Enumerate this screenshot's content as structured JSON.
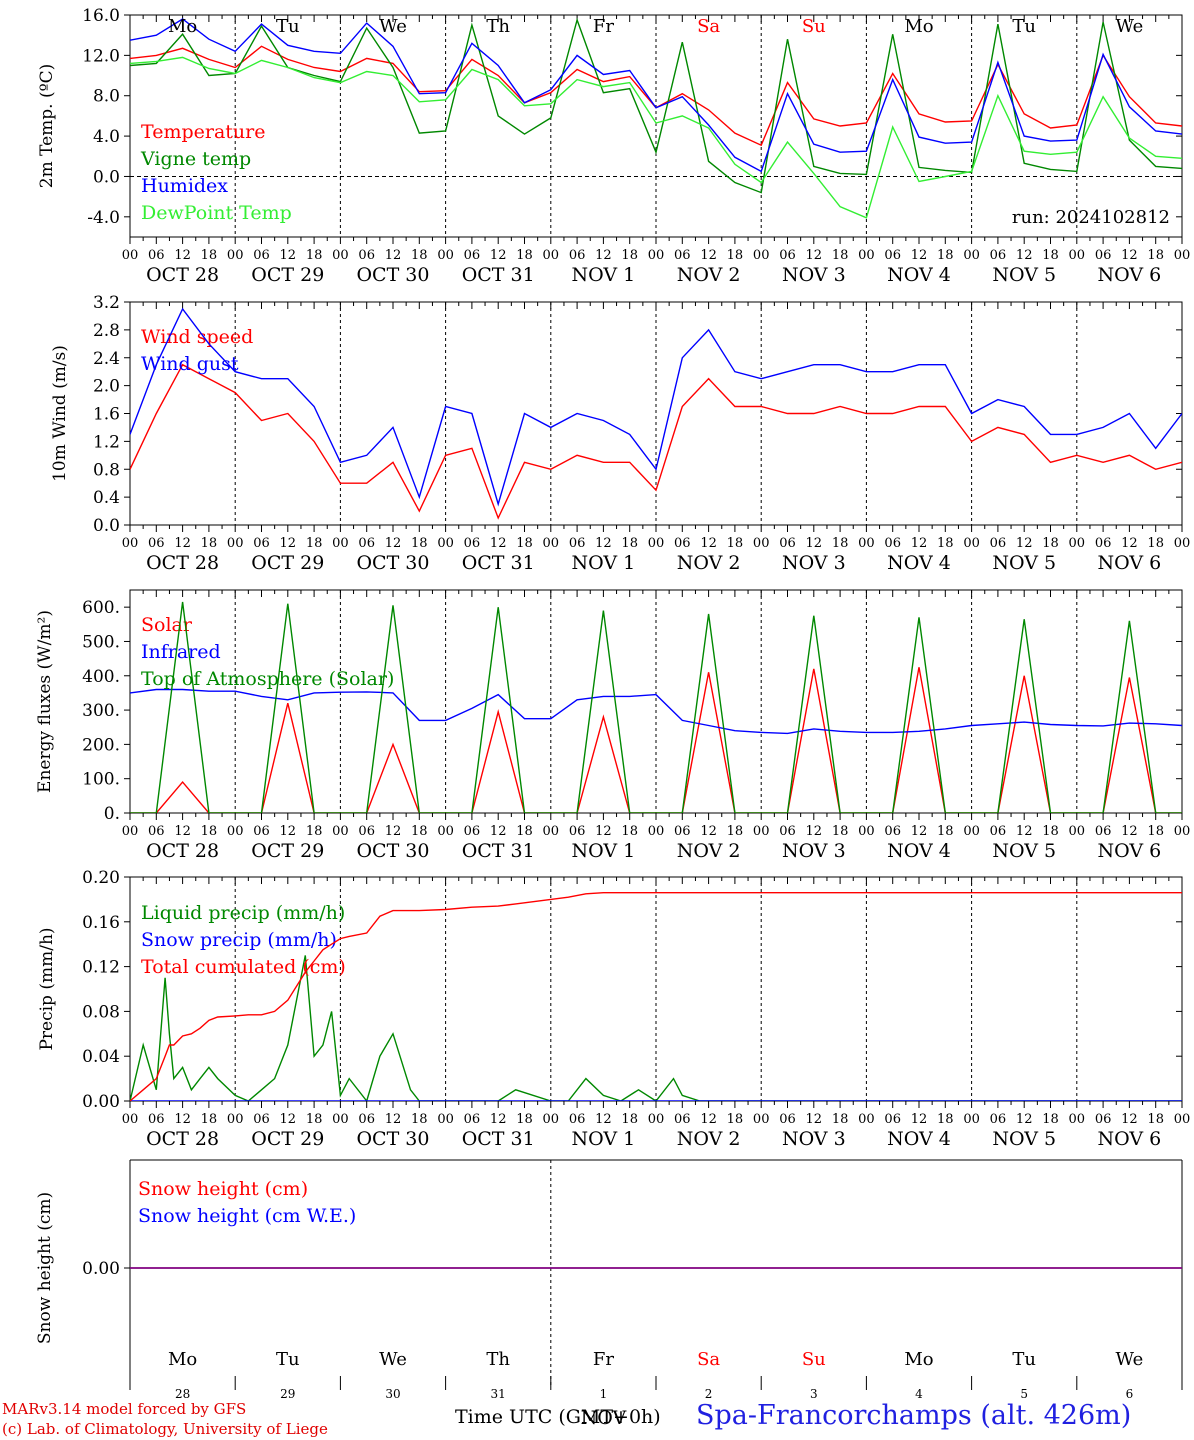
{
  "run_label": "run: 2024102812",
  "days": [
    {
      "dow": "Mo",
      "date": "OCT  28",
      "num": "28",
      "weekend": false
    },
    {
      "dow": "Tu",
      "date": "OCT  29",
      "num": "29",
      "weekend": false
    },
    {
      "dow": "We",
      "date": "OCT  30",
      "num": "30",
      "weekend": false
    },
    {
      "dow": "Th",
      "date": "OCT  31",
      "num": "31",
      "weekend": false
    },
    {
      "dow": "Fr",
      "date": "NOV   1",
      "num": "1",
      "weekend": false
    },
    {
      "dow": "Sa",
      "date": "NOV   2",
      "num": "2",
      "weekend": true
    },
    {
      "dow": "Su",
      "date": "NOV   3",
      "num": "3",
      "weekend": true
    },
    {
      "dow": "Mo",
      "date": "NOV   4",
      "num": "4",
      "weekend": false
    },
    {
      "dow": "Tu",
      "date": "NOV   5",
      "num": "5",
      "weekend": false
    },
    {
      "dow": "We",
      "date": "NOV   6",
      "num": "6",
      "weekend": false
    }
  ],
  "hour_ticks": [
    "00",
    "06",
    "12",
    "18"
  ],
  "end_tick": "00",
  "month_bottom": "NOV",
  "footer": {
    "credit_1": "MARv3.14 model forced by GFS",
    "credit_2": "(c) Lab. of Climatology, University of Liege",
    "axis_title": "Time UTC (GMT+0h)",
    "site": "Spa-Francorchamps (alt. 426m)"
  },
  "colors": {
    "red": "#ff0000",
    "green": "#008800",
    "blue": "#0000ff",
    "lightgreen": "#33ee33",
    "purple": "#800080",
    "footer_blue": "#2020e0",
    "footer_red": "#e00000"
  },
  "chart_data": [
    {
      "type": "line",
      "id": "temperature",
      "ylabel": "2m Temp. (ºC)",
      "ylim": [
        -6,
        16
      ],
      "ticks": [
        -4,
        0,
        4,
        8,
        12,
        16
      ],
      "tick_labels": [
        "-4.0",
        "0.0",
        "4.0",
        "8.0",
        "12.0",
        "16.0"
      ],
      "zero_line": true,
      "x_hours": [
        0,
        6,
        12,
        18,
        24,
        30,
        36,
        42,
        48,
        54,
        60,
        66,
        72,
        78,
        84,
        90,
        96,
        102,
        108,
        114,
        120,
        126,
        132,
        138,
        144,
        150,
        156,
        162,
        168,
        174,
        180,
        186,
        192,
        198,
        204,
        210,
        216,
        222,
        228,
        234,
        240
      ],
      "series": [
        {
          "name": "Temperature",
          "color": "red",
          "values": [
            11.7,
            12.0,
            12.7,
            11.6,
            10.8,
            12.9,
            11.6,
            10.8,
            10.4,
            11.7,
            11.2,
            8.4,
            8.5,
            11.6,
            10.0,
            7.3,
            8.3,
            10.6,
            9.4,
            9.9,
            6.8,
            8.2,
            6.6,
            4.3,
            3.1,
            9.3,
            5.7,
            5.0,
            5.3,
            10.2,
            6.2,
            5.4,
            5.5,
            11.1,
            6.2,
            4.8,
            5.1,
            12.0,
            7.9,
            5.3,
            5.0
          ]
        },
        {
          "name": "Vigne temp",
          "color": "green",
          "values": [
            11.0,
            11.2,
            14.1,
            10.0,
            10.2,
            14.9,
            10.8,
            10.0,
            9.4,
            14.7,
            10.8,
            4.3,
            4.5,
            15.0,
            6.0,
            4.2,
            5.8,
            15.5,
            8.3,
            8.7,
            2.4,
            13.3,
            1.5,
            -0.6,
            -1.6,
            13.6,
            1.0,
            0.3,
            0.2,
            14.1,
            0.9,
            0.6,
            0.4,
            15.1,
            1.3,
            0.7,
            0.5,
            15.3,
            3.6,
            1.0,
            0.8
          ]
        },
        {
          "name": "Humidex",
          "color": "blue",
          "values": [
            13.5,
            14.0,
            15.6,
            13.6,
            12.4,
            15.1,
            13.0,
            12.4,
            12.2,
            15.2,
            12.9,
            8.2,
            8.3,
            13.2,
            11.0,
            7.3,
            8.6,
            12.0,
            10.1,
            10.5,
            6.8,
            7.9,
            5.1,
            1.9,
            0.5,
            8.2,
            3.2,
            2.4,
            2.5,
            9.6,
            3.9,
            3.3,
            3.4,
            11.3,
            4.0,
            3.5,
            3.6,
            12.1,
            6.9,
            4.5,
            4.2
          ]
        },
        {
          "name": "DewPoint Temp",
          "color": "lightgreen",
          "values": [
            11.2,
            11.4,
            11.8,
            10.7,
            10.2,
            11.5,
            10.8,
            9.8,
            9.3,
            10.4,
            10.0,
            7.4,
            7.6,
            10.6,
            9.6,
            7.0,
            7.2,
            9.6,
            8.9,
            9.3,
            5.3,
            6.0,
            4.8,
            1.2,
            -0.6,
            3.4,
            0.3,
            -3.0,
            -4.1,
            4.9,
            -0.5,
            0.0,
            0.5,
            8.0,
            2.5,
            2.2,
            2.4,
            7.9,
            3.8,
            2.0,
            1.8
          ]
        }
      ]
    },
    {
      "type": "line",
      "id": "wind",
      "ylabel": "10m Wind (m/s)",
      "ylim": [
        0,
        3.2
      ],
      "ticks": [
        0,
        0.4,
        0.8,
        1.2,
        1.6,
        2.0,
        2.4,
        2.8,
        3.2
      ],
      "tick_labels": [
        "0.0",
        "0.4",
        "0.8",
        "1.2",
        "1.6",
        "2.0",
        "2.4",
        "2.8",
        "3.2"
      ],
      "x_hours": [
        0,
        6,
        12,
        18,
        24,
        30,
        36,
        42,
        48,
        54,
        60,
        66,
        72,
        78,
        84,
        90,
        96,
        102,
        108,
        114,
        120,
        126,
        132,
        138,
        144,
        150,
        156,
        162,
        168,
        174,
        180,
        186,
        192,
        198,
        204,
        210,
        216,
        222,
        228,
        234,
        240
      ],
      "series": [
        {
          "name": "Wind speed",
          "color": "red",
          "values": [
            0.8,
            1.6,
            2.3,
            2.1,
            1.9,
            1.5,
            1.6,
            1.2,
            0.6,
            0.6,
            0.9,
            0.2,
            1.0,
            1.1,
            0.1,
            0.9,
            0.8,
            1.0,
            0.9,
            0.9,
            0.5,
            1.7,
            2.1,
            1.7,
            1.7,
            1.6,
            1.6,
            1.7,
            1.6,
            1.6,
            1.7,
            1.7,
            1.2,
            1.4,
            1.3,
            0.9,
            1.0,
            0.9,
            1.0,
            0.8,
            0.9
          ]
        },
        {
          "name": "Wind gust",
          "color": "blue",
          "values": [
            1.3,
            2.3,
            3.1,
            2.6,
            2.2,
            2.1,
            2.1,
            1.7,
            0.9,
            1.0,
            1.4,
            0.4,
            1.7,
            1.6,
            0.3,
            1.6,
            1.4,
            1.6,
            1.5,
            1.3,
            0.8,
            2.4,
            2.8,
            2.2,
            2.1,
            2.2,
            2.3,
            2.3,
            2.2,
            2.2,
            2.3,
            2.3,
            1.6,
            1.8,
            1.7,
            1.3,
            1.3,
            1.4,
            1.6,
            1.1,
            1.6
          ]
        }
      ]
    },
    {
      "type": "line",
      "id": "energy",
      "ylabel": "Energy fluxes (W/m²)",
      "ylim": [
        0,
        650
      ],
      "ticks": [
        0,
        100,
        200,
        300,
        400,
        500,
        600
      ],
      "tick_labels": [
        "0.",
        "100.",
        "200.",
        "300.",
        "400.",
        "500.",
        "600."
      ],
      "x_hours": [
        0,
        6,
        12,
        18,
        24,
        30,
        36,
        42,
        48,
        54,
        60,
        66,
        72,
        78,
        84,
        90,
        96,
        102,
        108,
        114,
        120,
        126,
        132,
        138,
        144,
        150,
        156,
        162,
        168,
        174,
        180,
        186,
        192,
        198,
        204,
        210,
        216,
        222,
        228,
        234,
        240
      ],
      "series": [
        {
          "name": "Solar",
          "color": "red",
          "values": [
            0,
            0,
            90,
            0,
            0,
            0,
            320,
            0,
            0,
            0,
            200,
            0,
            0,
            0,
            295,
            0,
            0,
            0,
            280,
            0,
            0,
            0,
            410,
            0,
            0,
            0,
            420,
            0,
            0,
            0,
            425,
            0,
            0,
            0,
            400,
            0,
            0,
            0,
            395,
            0,
            0
          ]
        },
        {
          "name": "Infrared",
          "color": "blue",
          "values": [
            350,
            360,
            360,
            355,
            355,
            340,
            330,
            350,
            352,
            353,
            350,
            270,
            270,
            305,
            345,
            275,
            275,
            330,
            340,
            340,
            345,
            270,
            255,
            240,
            235,
            232,
            245,
            238,
            235,
            235,
            238,
            245,
            255,
            260,
            265,
            258,
            255,
            254,
            262,
            260,
            255
          ]
        },
        {
          "name": "Top of Atmosphere (Solar)",
          "color": "green",
          "values": [
            0,
            0,
            615,
            0,
            0,
            0,
            610,
            0,
            0,
            0,
            605,
            0,
            0,
            0,
            600,
            0,
            0,
            0,
            590,
            0,
            0,
            0,
            580,
            0,
            0,
            0,
            575,
            0,
            0,
            0,
            570,
            0,
            0,
            0,
            565,
            0,
            0,
            0,
            560,
            0,
            0
          ]
        }
      ]
    },
    {
      "type": "line",
      "id": "precip",
      "ylabel": "Precip (mm/h)",
      "ylim": [
        0,
        0.2
      ],
      "ticks": [
        0,
        0.04,
        0.08,
        0.12,
        0.16,
        0.2
      ],
      "tick_labels": [
        "0.00",
        "0.04",
        "0.08",
        "0.12",
        "0.16",
        "0.20"
      ],
      "x_hours": [
        0,
        3,
        6,
        8,
        9,
        10,
        12,
        14,
        16,
        18,
        20,
        24,
        27,
        30,
        33,
        36,
        40,
        42,
        44,
        46,
        48,
        50,
        54,
        57,
        60,
        64,
        66,
        72,
        78,
        84,
        88,
        96,
        100,
        104,
        108,
        112,
        116,
        120,
        124,
        126,
        130,
        132,
        144,
        168,
        192,
        216,
        240
      ],
      "series": [
        {
          "name": "Liquid precip (mm/h)",
          "color": "green",
          "values": [
            0,
            0.05,
            0.01,
            0.11,
            0.06,
            0.02,
            0.03,
            0.01,
            0.02,
            0.03,
            0.02,
            0.005,
            0,
            0.01,
            0.02,
            0.05,
            0.13,
            0.04,
            0.05,
            0.08,
            0.005,
            0.02,
            0,
            0.04,
            0.06,
            0.01,
            0,
            0,
            0,
            0,
            0.01,
            0,
            0,
            0.02,
            0.005,
            0,
            0.01,
            0,
            0.02,
            0.005,
            0,
            0,
            0,
            0,
            0,
            0,
            0
          ]
        },
        {
          "name": "Snow precip (mm/h)",
          "color": "blue",
          "values": [
            0,
            0,
            0,
            0,
            0,
            0,
            0,
            0,
            0,
            0,
            0,
            0,
            0,
            0,
            0,
            0,
            0,
            0,
            0,
            0,
            0,
            0,
            0,
            0,
            0,
            0,
            0,
            0,
            0,
            0,
            0,
            0,
            0,
            0,
            0,
            0,
            0,
            0,
            0,
            0,
            0,
            0,
            0,
            0,
            0,
            0,
            0
          ]
        },
        {
          "name": "Total cumulated (cm)",
          "color": "red",
          "values": [
            0,
            0.01,
            0.02,
            0.04,
            0.05,
            0.05,
            0.058,
            0.06,
            0.065,
            0.072,
            0.075,
            0.076,
            0.077,
            0.077,
            0.08,
            0.09,
            0.115,
            0.125,
            0.135,
            0.14,
            0.145,
            0.147,
            0.15,
            0.165,
            0.17,
            0.17,
            0.17,
            0.171,
            0.173,
            0.174,
            0.176,
            0.18,
            0.182,
            0.185,
            0.186,
            0.186,
            0.186,
            0.186,
            0.186,
            0.186,
            0.186,
            0.186,
            0.186,
            0.186,
            0.186,
            0.186,
            0.186
          ]
        }
      ]
    },
    {
      "type": "line",
      "id": "snow",
      "ylabel": "Snow height (cm)",
      "ticks": [
        0
      ],
      "tick_labels": [
        "0.00"
      ],
      "series": [
        {
          "name": "Snow height (cm)",
          "color": "red",
          "values": [
            0,
            0
          ]
        },
        {
          "name": "Snow height (cm W.E.)",
          "color": "blue",
          "values": [
            0,
            0
          ]
        }
      ]
    }
  ]
}
